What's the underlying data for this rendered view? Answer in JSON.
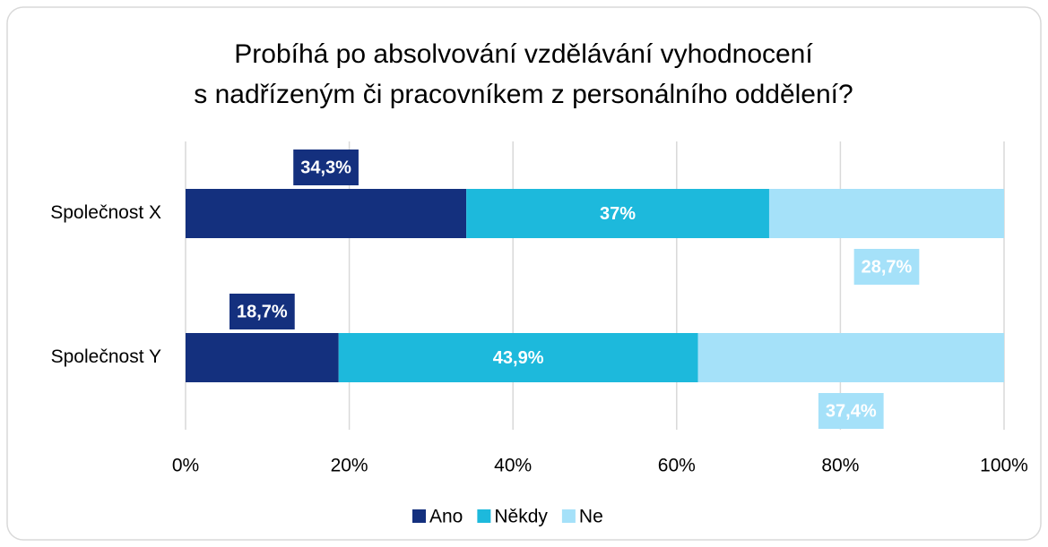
{
  "chart_data": {
    "type": "stacked_barh",
    "title": [
      "Probíhá po absolvování vzdělávání vyhodnocení",
      "s nadřízeným či pracovníkem z personálního oddělení?"
    ],
    "categories": [
      "Společnost X",
      "Společnost Y"
    ],
    "series": [
      {
        "name": "Ano",
        "color": "#14307e",
        "values": [
          34.3,
          18.7
        ],
        "value_labels": [
          "34,3%",
          "18,7%"
        ]
      },
      {
        "name": "Někdy",
        "color": "#1db9dc",
        "values": [
          37,
          43.9
        ],
        "value_labels": [
          "37%",
          "43,9%"
        ]
      },
      {
        "name": "Ne",
        "color": "#a5e1f9",
        "values": [
          28.7,
          37.4
        ],
        "value_labels": [
          "28,7%",
          "37,4%"
        ]
      }
    ],
    "xlim": [
      0,
      100
    ],
    "xticks": [
      {
        "value": 0,
        "label": "0%"
      },
      {
        "value": 20,
        "label": "20%"
      },
      {
        "value": 40,
        "label": "40%"
      },
      {
        "value": 60,
        "label": "60%"
      },
      {
        "value": 80,
        "label": "80%"
      },
      {
        "value": 100,
        "label": "100%"
      }
    ],
    "grid": true,
    "legend": "bottom"
  }
}
